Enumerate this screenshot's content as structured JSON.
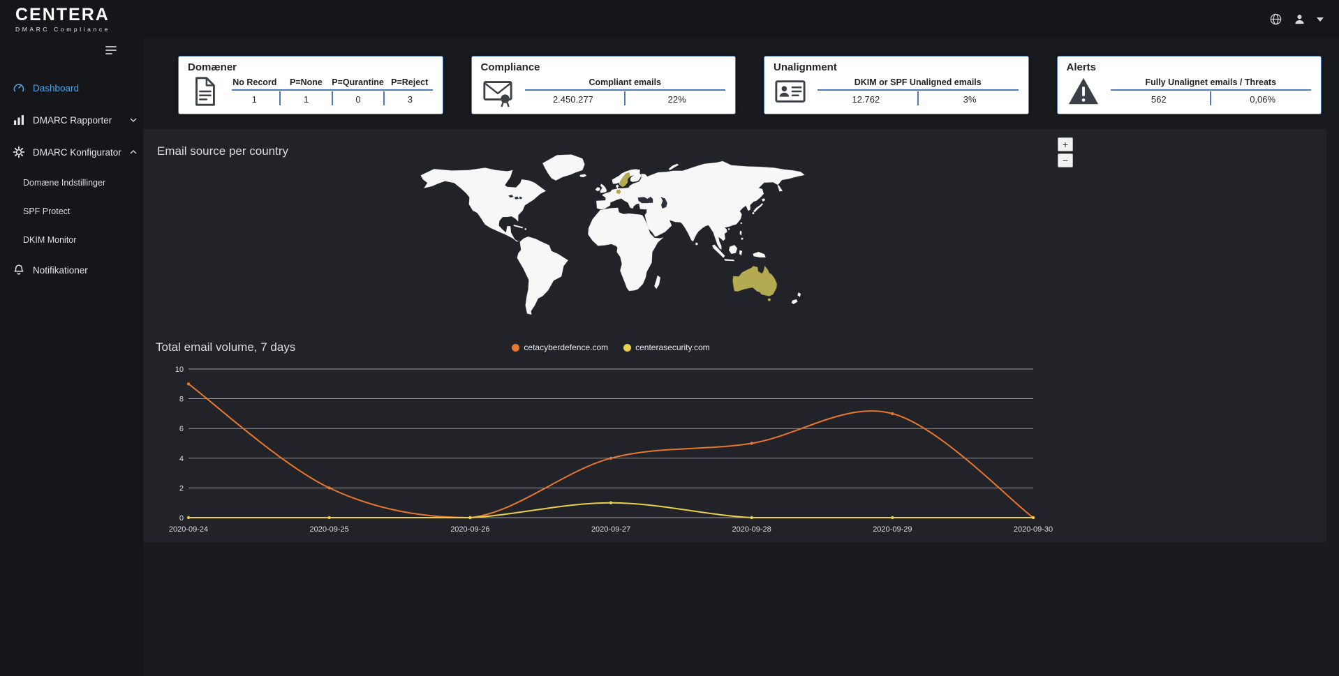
{
  "brand": {
    "name": "CENTERA",
    "tagline": "DMARC Compliance"
  },
  "topbar": {
    "icons": [
      "globe-icon",
      "user-icon",
      "caret-down-icon"
    ]
  },
  "sidebar": {
    "items": [
      {
        "label": "Dashboard",
        "icon": "dashboard",
        "active": true
      },
      {
        "label": "DMARC Rapporter",
        "icon": "reports",
        "chevron": "down"
      },
      {
        "label": "DMARC Konfigurator",
        "icon": "gear",
        "chevron": "up",
        "children": [
          "Domæne Indstillinger",
          "SPF Protect",
          "DKIM Monitor"
        ]
      },
      {
        "label": "Notifikationer",
        "icon": "bell"
      }
    ]
  },
  "cards": [
    {
      "title": "Domæner",
      "icon": "document",
      "labels": [
        "No Record",
        "P=None",
        "P=Qurantine",
        "P=Reject"
      ],
      "values": [
        "1",
        "1",
        "0",
        "3"
      ]
    },
    {
      "title": "Compliance",
      "icon": "envelope",
      "labels": [
        "Compliant emails"
      ],
      "values": [
        "2.450.277",
        "22%"
      ]
    },
    {
      "title": "Unalignment",
      "icon": "id-card",
      "labels": [
        "DKIM or SPF Unaligned emails"
      ],
      "values": [
        "12.762",
        "3%"
      ]
    },
    {
      "title": "Alerts",
      "icon": "warning",
      "labels": [
        "Fully Unalignet emails / Threats"
      ],
      "values": [
        "562",
        "0,06%"
      ]
    }
  ],
  "map": {
    "title": "Email source per country",
    "zoom_in": "+",
    "zoom_out": "−",
    "land_color": "#f7f7f7",
    "sea_color": "#2a303b",
    "highlight_color": "#b3aa52",
    "highlighted_countries": [
      "Sweden",
      "Germany",
      "Australia"
    ]
  },
  "chart_data": {
    "type": "line",
    "title": "Total email volume, 7 days",
    "x": [
      "2020-09-24",
      "2020-09-25",
      "2020-09-26",
      "2020-09-27",
      "2020-09-28",
      "2020-09-29",
      "2020-09-30"
    ],
    "series": [
      {
        "name": "cetacyberdefence.com",
        "color": "#e8772e",
        "values": [
          9,
          2,
          0,
          4,
          5,
          7,
          0
        ]
      },
      {
        "name": "centerasecurity.com",
        "color": "#e9d04a",
        "values": [
          0,
          0,
          0,
          1,
          0,
          0,
          0
        ]
      }
    ],
    "ylim": [
      0,
      10
    ],
    "yticks": [
      0,
      2,
      4,
      6,
      8,
      10
    ],
    "grid": true,
    "legend_position": "top-center"
  },
  "footer": {
    "accent_bar_color": "#1666d2"
  }
}
